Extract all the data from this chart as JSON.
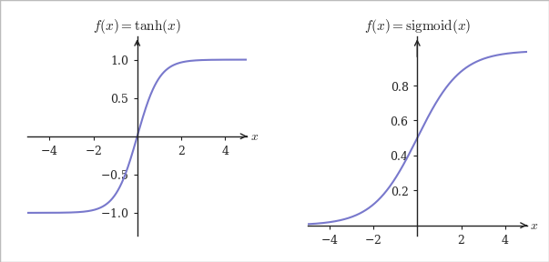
{
  "title1": "$f(x) = \\tanh(x)$",
  "title2": "$f(x) = \\mathrm{sigmoid}(x)$",
  "xlabel": "$x$",
  "xlim": [
    -5.0,
    5.0
  ],
  "tanh_ylim": [
    -1.3,
    1.3
  ],
  "sigmoid_ylim": [
    -0.06,
    1.08
  ],
  "tanh_yticks": [
    -1,
    -0.5,
    0.5,
    1
  ],
  "sigmoid_yticks": [
    0.2,
    0.4,
    0.6,
    0.8
  ],
  "xticks": [
    -4,
    -2,
    2,
    4
  ],
  "line_color": "#7878cc",
  "line_width": 1.5,
  "axis_color": "#222222",
  "bg_color": "#ffffff",
  "border_color": "#bbbbbb",
  "title_fontsize": 11,
  "tick_fontsize": 9,
  "xlabel_fontsize": 10
}
